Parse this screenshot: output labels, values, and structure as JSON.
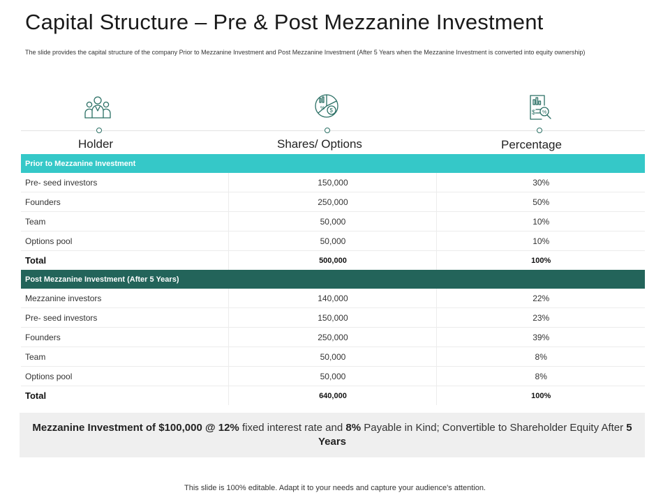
{
  "title": "Capital Structure – Pre & Post Mezzanine Investment",
  "subtitle": "The slide provides the capital structure of the company Prior to Mezzanine Investment and Post Mezzanine Investment (After 5 Years when the Mezzanine Investment is converted into equity ownership)",
  "icons": [
    "people-icon",
    "pie-chart-money-icon",
    "report-magnifier-icon"
  ],
  "columns": {
    "holder": "Holder",
    "shares": "Shares/ Options",
    "percentage": "Percentage"
  },
  "pre": {
    "label": "Prior to Mezzanine Investment",
    "rows": [
      {
        "holder": "Pre- seed investors",
        "shares": "150,000",
        "pct": "30%"
      },
      {
        "holder": "Founders",
        "shares": "250,000",
        "pct": "50%"
      },
      {
        "holder": "Team",
        "shares": "50,000",
        "pct": "10%"
      },
      {
        "holder": "Options pool",
        "shares": "50,000",
        "pct": "10%"
      }
    ],
    "total": {
      "holder": "Total",
      "shares": "500,000",
      "pct": "100%"
    }
  },
  "post": {
    "label": "Post Mezzanine Investment  (After 5 Years)",
    "rows": [
      {
        "holder": "Mezzanine investors",
        "shares": "140,000",
        "pct": "22%"
      },
      {
        "holder": "Pre- seed investors",
        "shares": "150,000",
        "pct": "23%"
      },
      {
        "holder": "Founders",
        "shares": "250,000",
        "pct": "39%"
      },
      {
        "holder": "Team",
        "shares": "50,000",
        "pct": "8%"
      },
      {
        "holder": "Options pool",
        "shares": "50,000",
        "pct": "8%"
      }
    ],
    "total": {
      "holder": "Total",
      "shares": "640,000",
      "pct": "100%"
    }
  },
  "note": {
    "b1": "Mezzanine Investment  of $100,000 @ 12%",
    "t1": " fixed interest rate and ",
    "b2": "8%",
    "t2": " Payable in Kind; Convertible to Shareholder Equity After ",
    "b3": "5 Years"
  },
  "footer": "This slide is 100% editable. Adapt it to your needs and capture your audience's attention.",
  "colors": {
    "accent_teal": "#35c8c8",
    "accent_dark": "#23645a",
    "icon_stroke": "#2a6f64"
  }
}
